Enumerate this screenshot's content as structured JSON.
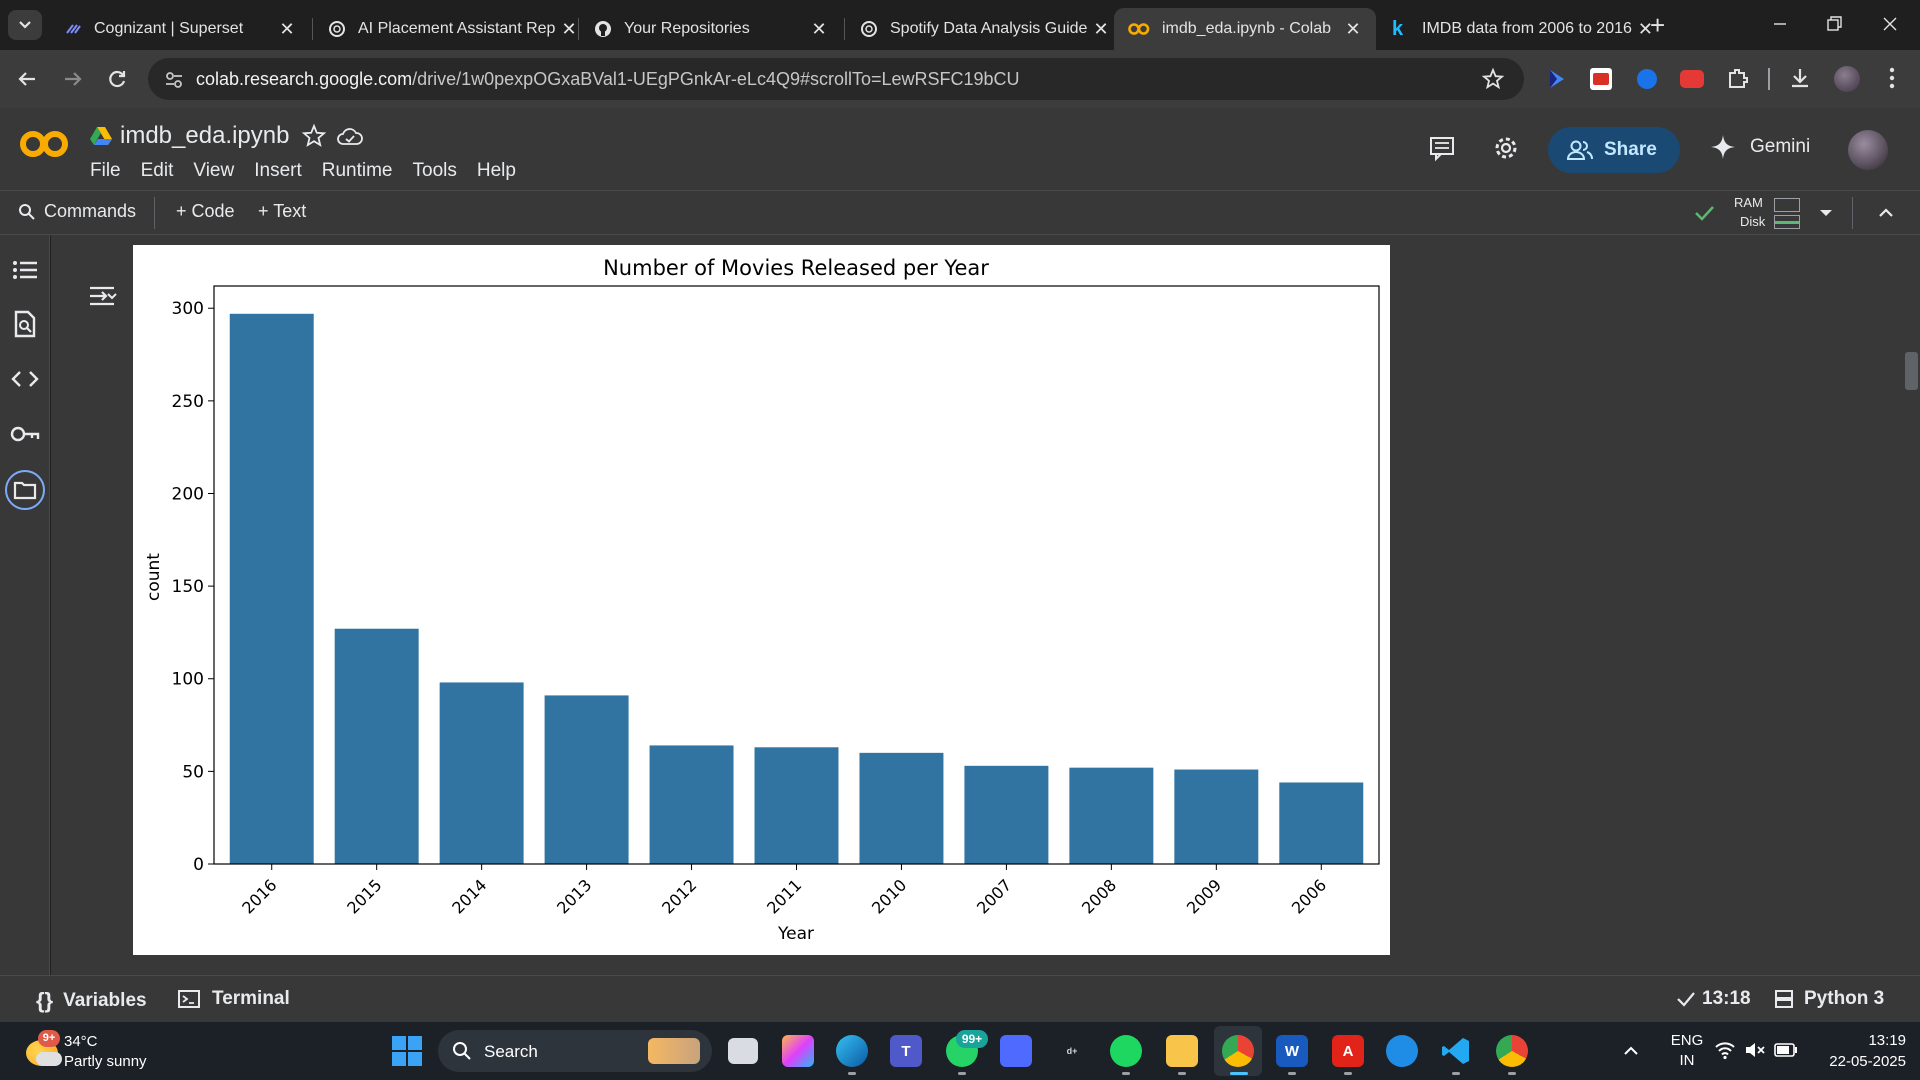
{
  "browser": {
    "tabs": [
      {
        "title": "Cognizant | Superset",
        "active": false
      },
      {
        "title": "AI Placement Assistant Rep",
        "active": false
      },
      {
        "title": "Your Repositories",
        "active": false
      },
      {
        "title": "Spotify Data Analysis Guide",
        "active": false
      },
      {
        "title": "imdb_eda.ipynb - Colab",
        "active": true
      },
      {
        "title": "IMDB data from 2006 to 2016",
        "active": false
      }
    ],
    "close_glyph": "✕",
    "new_tab_glyph": "+",
    "url_host": "colab.research.google.com",
    "url_path": "/drive/1w0pexpOGxaBVal1-UEgPGnkAr-eLc4Q9#scrollTo=LewRSFC19bCU"
  },
  "colab": {
    "notebook_name": "imdb_eda.ipynb",
    "menu": [
      "File",
      "Edit",
      "View",
      "Insert",
      "Runtime",
      "Tools",
      "Help"
    ],
    "share_label": "Share",
    "gemini_label": "Gemini",
    "toolbar": {
      "commands": "Commands",
      "code": "+ Code",
      "text": "+ Text",
      "ram": "RAM",
      "disk": "Disk"
    },
    "status": {
      "variables": "Variables",
      "terminal": "Terminal",
      "exec_time": "13:18",
      "runtime": "Python 3"
    }
  },
  "chart_data": {
    "type": "bar",
    "title": "Number of Movies Released per Year",
    "xlabel": "Year",
    "ylabel": "count",
    "categories": [
      "2016",
      "2015",
      "2014",
      "2013",
      "2012",
      "2011",
      "2010",
      "2007",
      "2008",
      "2009",
      "2006"
    ],
    "values": [
      297,
      127,
      98,
      91,
      64,
      63,
      60,
      53,
      52,
      51,
      44
    ],
    "ylim": [
      0,
      312
    ],
    "yticks": [
      0,
      50,
      100,
      150,
      200,
      250,
      300
    ],
    "bar_color": "#3274a1",
    "grid": false
  },
  "taskbar": {
    "weather_temp": "34°C",
    "weather_desc": "Partly sunny",
    "weather_badge": "9+",
    "search_label": "Search",
    "whatsapp_badge": "99+",
    "lang_line1": "ENG",
    "lang_line2": "IN",
    "time": "13:19",
    "date": "22-05-2025"
  }
}
